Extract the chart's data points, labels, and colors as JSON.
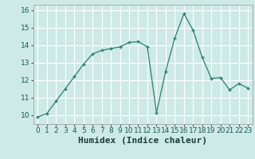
{
  "x": [
    0,
    1,
    2,
    3,
    4,
    5,
    6,
    7,
    8,
    9,
    10,
    11,
    12,
    13,
    14,
    15,
    16,
    17,
    18,
    19,
    20,
    21,
    22,
    23
  ],
  "y": [
    9.9,
    10.1,
    10.8,
    11.5,
    12.2,
    12.9,
    13.5,
    13.7,
    13.8,
    13.9,
    14.15,
    14.2,
    13.9,
    10.15,
    12.5,
    14.4,
    15.8,
    14.85,
    13.3,
    12.1,
    12.15,
    11.45,
    11.8,
    11.55
  ],
  "line_color": "#2e7d6e",
  "marker": "+",
  "marker_size": 3.5,
  "linewidth": 0.9,
  "xlabel": "Humidex (Indice chaleur)",
  "xlim": [
    -0.5,
    23.5
  ],
  "ylim": [
    9.5,
    16.3
  ],
  "yticks": [
    10,
    11,
    12,
    13,
    14,
    15,
    16
  ],
  "xticks": [
    0,
    1,
    2,
    3,
    4,
    5,
    6,
    7,
    8,
    9,
    10,
    11,
    12,
    13,
    14,
    15,
    16,
    17,
    18,
    19,
    20,
    21,
    22,
    23
  ],
  "bg_color": "#ceeae7",
  "grid_color": "#ffffff",
  "tick_fontsize": 6.5,
  "xlabel_fontsize": 8
}
